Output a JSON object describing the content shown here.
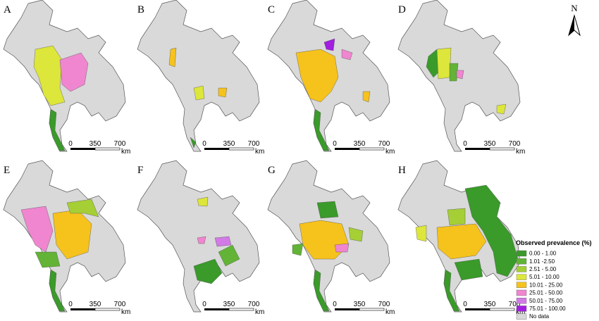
{
  "panels": [
    {
      "label": "A"
    },
    {
      "label": "B"
    },
    {
      "label": "C"
    },
    {
      "label": "D"
    },
    {
      "label": "E"
    },
    {
      "label": "F"
    },
    {
      "label": "G"
    },
    {
      "label": "H"
    }
  ],
  "scale_bar": {
    "ticks": [
      "0",
      "350",
      "700"
    ],
    "unit": "km"
  },
  "north": "N",
  "legend": {
    "title": "Observed prevalence (%)",
    "items": [
      {
        "label": "0.00 - 1.00",
        "color": "#3a9a2a"
      },
      {
        "label": "1.01 -2.50",
        "color": "#62b336"
      },
      {
        "label": "2.51 - 5.00",
        "color": "#a5cf35"
      },
      {
        "label": "5.01 - 10.00",
        "color": "#dde63a"
      },
      {
        "label": "10.01 - 25.00",
        "color": "#f6c21c"
      },
      {
        "label": "25.01 - 50.00",
        "color": "#ef86cf"
      },
      {
        "label": "50.01 - 75.00",
        "color": "#d27ae6"
      },
      {
        "label": "75.01 - 100.00",
        "color": "#a21ee0"
      },
      {
        "label": "No data",
        "color": "#d9d9d9"
      }
    ]
  }
}
